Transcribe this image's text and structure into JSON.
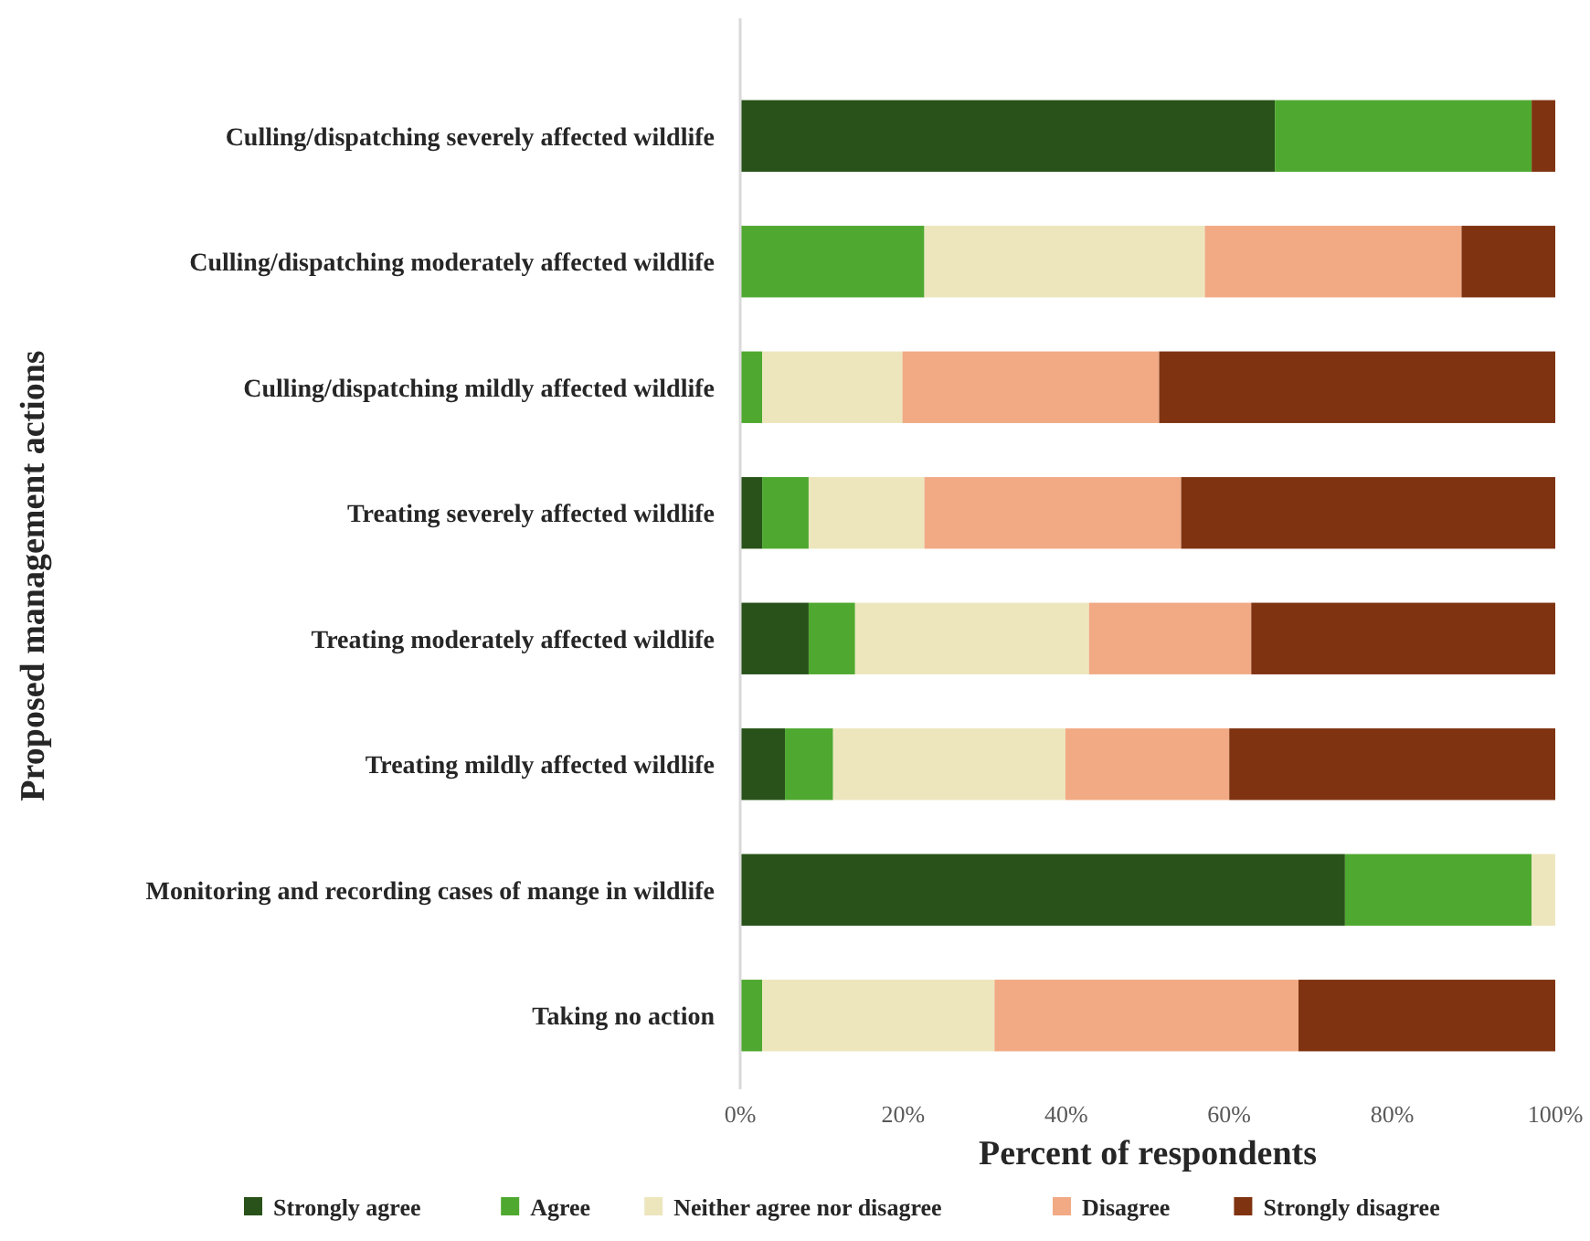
{
  "chart_data": {
    "type": "bar",
    "orientation": "horizontal",
    "stacked": true,
    "xlabel": "Percent of respondents",
    "ylabel": "Proposed management actions",
    "categories": [
      "Culling/dispatching severely affected wildlife",
      "Culling/dispatching moderately affected wildlife",
      "Culling/dispatching mildly affected wildlife",
      "Treating severely affected wildlife",
      "Treating moderately affected wildlife",
      "Treating mildly affected wildlife",
      "Monitoring and recording cases of mange in wildlife",
      "Taking no action"
    ],
    "series": [
      {
        "name": "Strongly agree",
        "color": "#285219",
        "values": [
          65.6,
          0,
          0,
          2.7,
          8.4,
          5.5,
          74.2,
          0
        ]
      },
      {
        "name": "Agree",
        "color": "#4fa82f",
        "values": [
          31.5,
          22.6,
          2.7,
          5.7,
          5.7,
          5.9,
          22.9,
          2.7
        ]
      },
      {
        "name": "Neither agree nor disagree",
        "color": "#ede6bd",
        "values": [
          0,
          34.4,
          17.2,
          14.2,
          28.7,
          28.5,
          2.9,
          28.5
        ]
      },
      {
        "name": "Disagree",
        "color": "#f1aa84",
        "values": [
          0,
          31.5,
          31.5,
          31.5,
          19.9,
          20.1,
          0,
          37.3
        ]
      },
      {
        "name": "Strongly disagree",
        "color": "#7f3310",
        "values": [
          2.9,
          11.5,
          48.6,
          45.9,
          37.3,
          40.0,
          0,
          31.5
        ]
      }
    ],
    "xlim": [
      0,
      100
    ],
    "xticks": [
      {
        "value": 0,
        "label": "0%"
      },
      {
        "value": 20,
        "label": "20%"
      },
      {
        "value": 40,
        "label": "40%"
      },
      {
        "value": 60,
        "label": "60%"
      },
      {
        "value": 80,
        "label": "80%"
      },
      {
        "value": 100,
        "label": "100%"
      }
    ],
    "grid": false,
    "legend": "bottom"
  }
}
